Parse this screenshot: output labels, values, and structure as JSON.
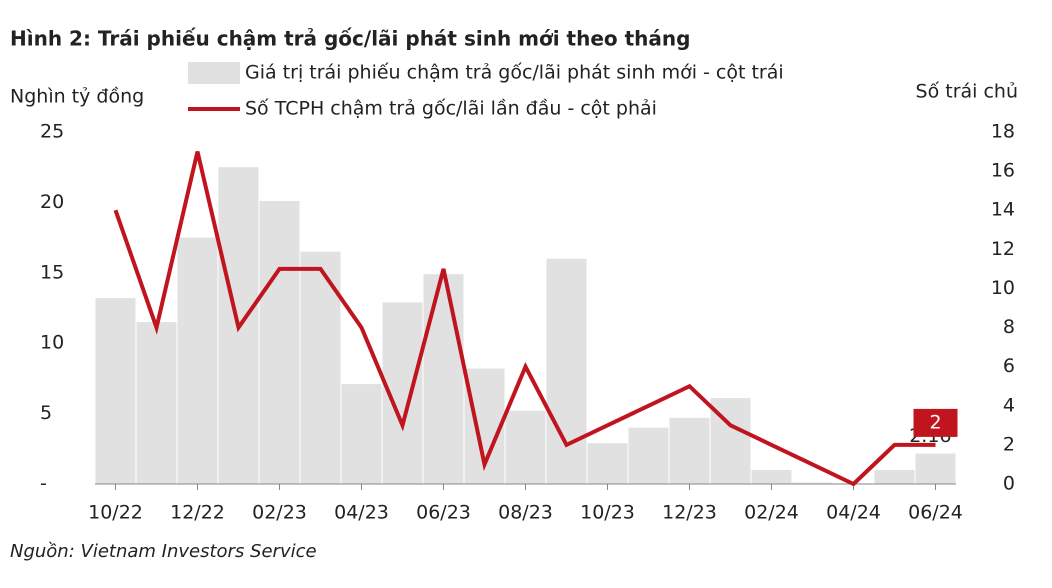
{
  "chart_data": {
    "type": "combo",
    "title": "Hình 2: Trái phiếu chậm trả gốc/lãi phát sinh mới theo tháng",
    "y_label": "Nghìn tỷ đồng",
    "y2_label": "Số trái chủ",
    "source": "Nguồn: Vietnam Investors Service",
    "categories": [
      "10/22",
      null,
      "12/22",
      null,
      "02/23",
      null,
      "04/23",
      null,
      "06/23",
      null,
      "08/23",
      null,
      "10/23",
      null,
      "12/23",
      null,
      "02/24",
      null,
      "04/24",
      null,
      "06/24"
    ],
    "series": [
      {
        "name": "Giá trị trái phiếu chậm trả gốc/lãi phát sinh mới - cột trái",
        "type": "bar",
        "color": "#e1e1e1",
        "values": [
          13.2,
          11.5,
          17.5,
          22.5,
          20.1,
          16.5,
          7.1,
          12.9,
          14.9,
          8.2,
          5.2,
          16.0,
          2.9,
          4.0,
          4.7,
          6.1,
          1.0,
          0.1,
          0.05,
          1.0,
          2.16
        ]
      },
      {
        "name": "Số TCPH chậm trả gốc/lãi lần đầu - cột phải",
        "type": "line",
        "axis": "y2",
        "color": "#c0141e",
        "values": [
          14,
          8,
          17,
          8,
          11,
          11,
          8,
          3,
          11,
          1,
          6,
          2,
          3,
          4,
          5,
          3,
          2,
          1,
          0,
          2,
          2
        ]
      }
    ],
    "ylim": [
      0,
      25
    ],
    "yticks": [
      {
        "value": 0,
        "label": "-"
      },
      5,
      10,
      15,
      20,
      25
    ],
    "y2lim": [
      0,
      18
    ],
    "y2ticks": [
      0,
      2,
      4,
      6,
      8,
      10,
      12,
      14,
      16,
      18
    ]
  }
}
